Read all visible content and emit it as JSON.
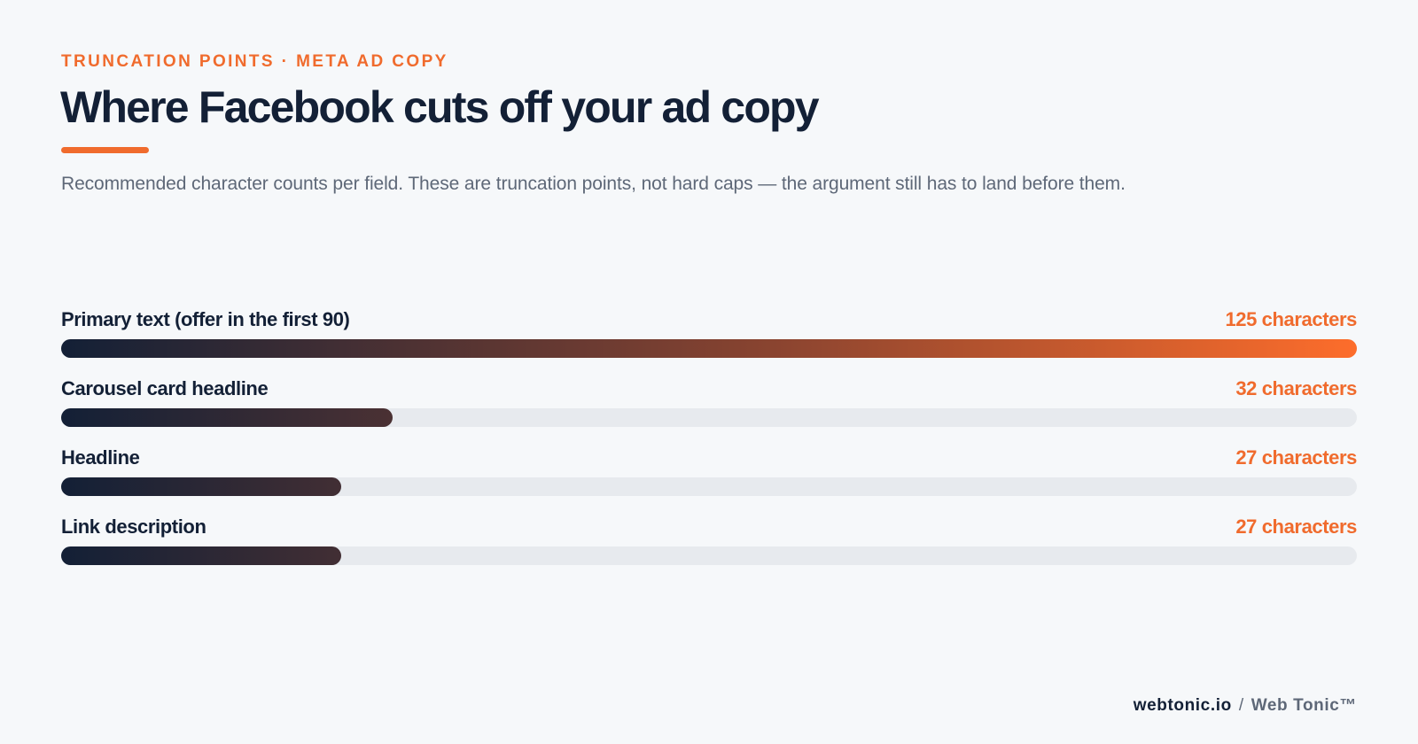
{
  "header": {
    "eyebrow": "TRUNCATION POINTS · META AD COPY",
    "title": "Where Facebook cuts off your ad copy",
    "subtitle": "Recommended character counts per field. These are truncation points, not hard caps — the argument still has to land before them."
  },
  "chart_data": {
    "type": "bar",
    "orientation": "horizontal",
    "categories": [
      "Primary text (offer in the first 90)",
      "Carousel card headline",
      "Headline",
      "Link description"
    ],
    "values": [
      125,
      32,
      27,
      27
    ],
    "value_labels": [
      "125 characters",
      "32 characters",
      "27 characters",
      "27 characters"
    ],
    "xlim": [
      0,
      125
    ],
    "grid": false,
    "legend": "none"
  },
  "footer": {
    "domain": "webtonic.io",
    "separator": "/",
    "brand": "Web Tonic™"
  },
  "colors": {
    "accent": "#f06b2d",
    "navy": "#132036",
    "track": "#e7eaee",
    "muted": "#5e6878",
    "background": "#f6f8fa"
  }
}
